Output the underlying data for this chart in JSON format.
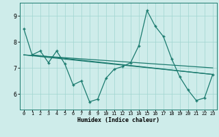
{
  "xlabel": "Humidex (Indice chaleur)",
  "bg_color": "#ceecea",
  "line_color": "#1a7a6e",
  "grid_color": "#a0d4d0",
  "xlim": [
    -0.5,
    23.5
  ],
  "ylim": [
    5.4,
    9.5
  ],
  "yticks": [
    6,
    7,
    8,
    9
  ],
  "xticks": [
    0,
    1,
    2,
    3,
    4,
    5,
    6,
    7,
    8,
    9,
    10,
    11,
    12,
    13,
    14,
    15,
    16,
    17,
    18,
    19,
    20,
    21,
    22,
    23
  ],
  "main_x": [
    0,
    1,
    2,
    3,
    4,
    5,
    6,
    7,
    8,
    9,
    10,
    11,
    12,
    13,
    14,
    15,
    16,
    17,
    18,
    19,
    20,
    21,
    22,
    23
  ],
  "main_y": [
    8.5,
    7.5,
    7.65,
    7.2,
    7.65,
    7.15,
    6.35,
    6.5,
    5.7,
    5.8,
    6.6,
    6.95,
    7.05,
    7.2,
    7.85,
    9.2,
    8.6,
    8.2,
    7.35,
    6.65,
    6.15,
    5.75,
    5.85,
    6.75
  ],
  "trend1_x": [
    0,
    23
  ],
  "trend1_y": [
    7.5,
    7.0
  ],
  "trend2_x": [
    0,
    23
  ],
  "trend2_y": [
    7.5,
    6.75
  ],
  "trend3_x": [
    1,
    23
  ],
  "trend3_y": [
    7.5,
    6.75
  ]
}
